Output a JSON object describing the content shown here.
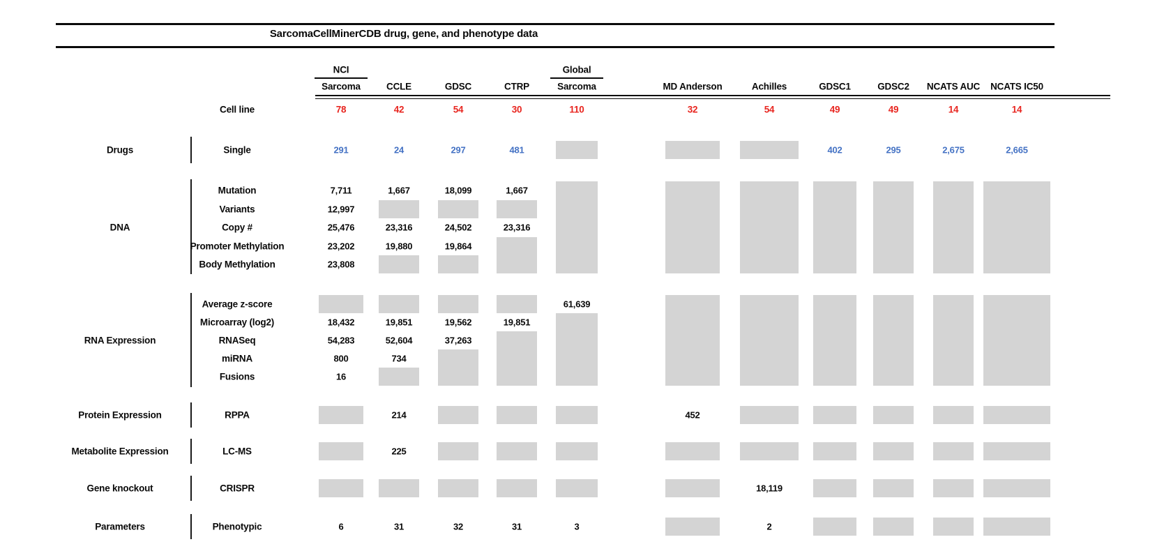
{
  "figure": {
    "title": "SarcomaCellMinerCDB drug, gene, and phenotype data"
  },
  "colors": {
    "count_red": "#e8251f",
    "drug_blue": "#4472c4",
    "missing_gray": "#d4d4d4",
    "text_black": "#0a0a0a"
  },
  "chart_data": {
    "type": "table",
    "title": "SarcomaCellMinerCDB drug, gene, and phenotype data",
    "columns": [
      {
        "id": "nci-sarcoma",
        "label_top": "NCI",
        "label": "Sarcoma"
      },
      {
        "id": "ccle",
        "label": "CCLE"
      },
      {
        "id": "gdsc",
        "label": "GDSC"
      },
      {
        "id": "ctrp",
        "label": "CTRP"
      },
      {
        "id": "global-sarcoma",
        "label_top": "Global",
        "label": "Sarcoma"
      },
      {
        "id": "md-anderson",
        "label": "MD Anderson"
      },
      {
        "id": "achilles",
        "label": "Achilles"
      },
      {
        "id": "gdsc1",
        "label": "GDSC1"
      },
      {
        "id": "gdsc2",
        "label": "GDSC2"
      },
      {
        "id": "ncats-auc",
        "label": "NCATS AUC"
      },
      {
        "id": "ncats-ic50",
        "label": "NCATS IC50"
      }
    ],
    "cell_line_row": {
      "label": "Cell line",
      "color": "red",
      "values": [
        "78",
        "42",
        "54",
        "30",
        "110",
        "32",
        "54",
        "49",
        "49",
        "14",
        "14"
      ]
    },
    "row_groups": [
      {
        "category": "Drugs",
        "value_color": "blue",
        "rows": [
          {
            "label": "Single",
            "cells": [
              "291",
              "24",
              "297",
              "481",
              {
                "box": 1
              },
              {
                "box": 1
              },
              {
                "box": 1
              },
              "402",
              "295",
              "2,675",
              "2,665"
            ]
          }
        ]
      },
      {
        "category": "DNA",
        "value_color": "black",
        "rows": [
          {
            "label": "Mutation",
            "cells": [
              "7,711",
              "1,667",
              "18,099",
              "1,667",
              {
                "box": 5
              },
              {
                "box": 5
              },
              {
                "box": 5
              },
              {
                "box": 5
              },
              {
                "box": 5
              },
              {
                "box": 5
              },
              {
                "box": 5
              }
            ]
          },
          {
            "label": "Variants",
            "cells": [
              "12,997",
              {
                "box": 1
              },
              {
                "box": 1
              },
              {
                "box": 1
              },
              null,
              null,
              null,
              null,
              null,
              null,
              null
            ]
          },
          {
            "label": "Copy #",
            "cells": [
              "25,476",
              "23,316",
              "24,502",
              "23,316",
              null,
              null,
              null,
              null,
              null,
              null,
              null
            ]
          },
          {
            "label": "Promoter Methylation",
            "cells": [
              "23,202",
              "19,880",
              "19,864",
              {
                "box": 2
              },
              null,
              null,
              null,
              null,
              null,
              null,
              null
            ]
          },
          {
            "label": "Body Methylation",
            "cells": [
              "23,808",
              {
                "box": 1
              },
              {
                "box": 1
              },
              null,
              null,
              null,
              null,
              null,
              null,
              null,
              null
            ]
          }
        ]
      },
      {
        "category": "RNA Expression",
        "value_color": "black",
        "rows": [
          {
            "label": "Average z-score",
            "cells": [
              {
                "box": 1
              },
              {
                "box": 1
              },
              {
                "box": 1
              },
              {
                "box": 1
              },
              "61,639",
              {
                "box": 5
              },
              {
                "box": 5
              },
              {
                "box": 5
              },
              {
                "box": 5
              },
              {
                "box": 5
              },
              {
                "box": 5
              }
            ]
          },
          {
            "label": "Microarray (log2)",
            "cells": [
              "18,432",
              "19,851",
              "19,562",
              "19,851",
              {
                "box": 4
              },
              null,
              null,
              null,
              null,
              null,
              null
            ]
          },
          {
            "label": "RNASeq",
            "cells": [
              "54,283",
              "52,604",
              "37,263",
              {
                "box": 3
              },
              null,
              null,
              null,
              null,
              null,
              null,
              null
            ]
          },
          {
            "label": "miRNA",
            "cells": [
              "800",
              "734",
              {
                "box": 2
              },
              null,
              null,
              null,
              null,
              null,
              null,
              null,
              null
            ]
          },
          {
            "label": "Fusions",
            "cells": [
              "16",
              {
                "box": 1
              },
              null,
              null,
              null,
              null,
              null,
              null,
              null,
              null,
              null
            ]
          }
        ]
      },
      {
        "category": "Protein Expression",
        "value_color": "black",
        "rows": [
          {
            "label": "RPPA",
            "cells": [
              {
                "box": 1
              },
              "214",
              {
                "box": 1
              },
              {
                "box": 1
              },
              {
                "box": 1
              },
              "452",
              {
                "box": 1
              },
              {
                "box": 1
              },
              {
                "box": 1
              },
              {
                "box": 1
              },
              {
                "box": 1
              }
            ]
          }
        ]
      },
      {
        "category": "Metabolite Expression",
        "value_color": "black",
        "rows": [
          {
            "label": "LC-MS",
            "cells": [
              {
                "box": 1
              },
              "225",
              {
                "box": 1
              },
              {
                "box": 1
              },
              {
                "box": 1
              },
              {
                "box": 1
              },
              {
                "box": 1
              },
              {
                "box": 1
              },
              {
                "box": 1
              },
              {
                "box": 1
              },
              {
                "box": 1
              }
            ]
          }
        ]
      },
      {
        "category": "Gene knockout",
        "value_color": "black",
        "rows": [
          {
            "label": "CRISPR",
            "cells": [
              {
                "box": 1
              },
              {
                "box": 1
              },
              {
                "box": 1
              },
              {
                "box": 1
              },
              {
                "box": 1
              },
              {
                "box": 1
              },
              "18,119",
              {
                "box": 1
              },
              {
                "box": 1
              },
              {
                "box": 1
              },
              {
                "box": 1
              }
            ]
          }
        ]
      },
      {
        "category": "Parameters",
        "value_color": "black",
        "rows": [
          {
            "label": "Phenotypic",
            "cells": [
              "6",
              "31",
              "32",
              "31",
              "3",
              {
                "box": 1
              },
              "2",
              {
                "box": 1
              },
              {
                "box": 1
              },
              {
                "box": 1
              },
              {
                "box": 1
              }
            ]
          }
        ]
      }
    ]
  }
}
